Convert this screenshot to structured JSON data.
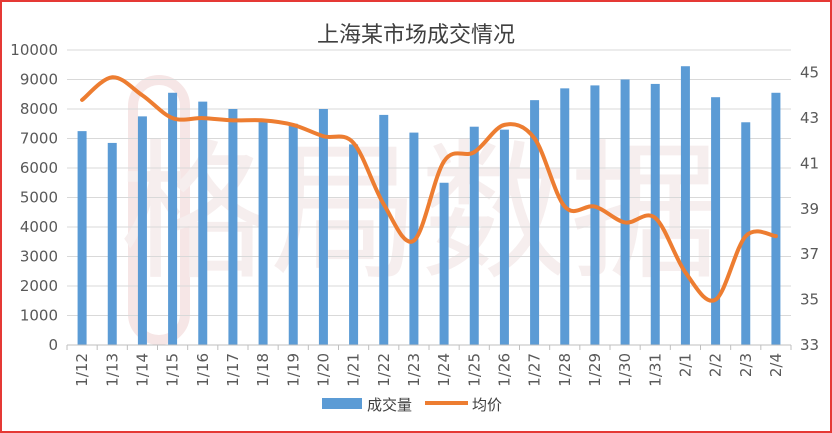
{
  "chart_data": {
    "type": "bar+line",
    "title": "上海某市场成交情况",
    "categories": [
      "1/12",
      "1/13",
      "1/14",
      "1/15",
      "1/16",
      "1/17",
      "1/18",
      "1/19",
      "1/20",
      "1/21",
      "1/22",
      "1/23",
      "1/24",
      "1/25",
      "1/26",
      "1/27",
      "1/28",
      "1/29",
      "1/30",
      "1/31",
      "2/1",
      "2/2",
      "2/3",
      "2/4"
    ],
    "series": [
      {
        "name": "成交量",
        "type": "bar",
        "axis": "left",
        "color": "#5b9bd5",
        "values": [
          7250,
          6850,
          7750,
          8550,
          8250,
          8000,
          7650,
          7500,
          8000,
          6800,
          7800,
          7200,
          5500,
          7400,
          7300,
          8300,
          8700,
          8800,
          9000,
          8850,
          9450,
          8400,
          7550,
          8550
        ]
      },
      {
        "name": "均价",
        "type": "line",
        "axis": "right",
        "color": "#ed7d31",
        "values": [
          43.8,
          44.8,
          44.0,
          43.0,
          43.0,
          42.9,
          42.9,
          42.7,
          42.2,
          41.9,
          39.2,
          37.6,
          41.1,
          41.5,
          42.7,
          42.1,
          39.1,
          39.1,
          38.4,
          38.6,
          36.2,
          35.0,
          37.8,
          37.8
        ]
      }
    ],
    "y_left": {
      "min": 0,
      "max": 10000,
      "ticks": [
        0,
        1000,
        2000,
        3000,
        4000,
        5000,
        6000,
        7000,
        8000,
        9000,
        10000
      ]
    },
    "y_right": {
      "min": 33,
      "max": 46,
      "ticks": [
        33,
        35,
        37,
        39,
        41,
        43,
        45
      ]
    },
    "legend_position": "bottom",
    "grid": true,
    "watermark_text": "格局数据"
  },
  "colors": {
    "frame_border": "#e53935",
    "grid": "#d9d9d9",
    "axis_text": "#595959",
    "watermark": "#f0d8d8"
  }
}
